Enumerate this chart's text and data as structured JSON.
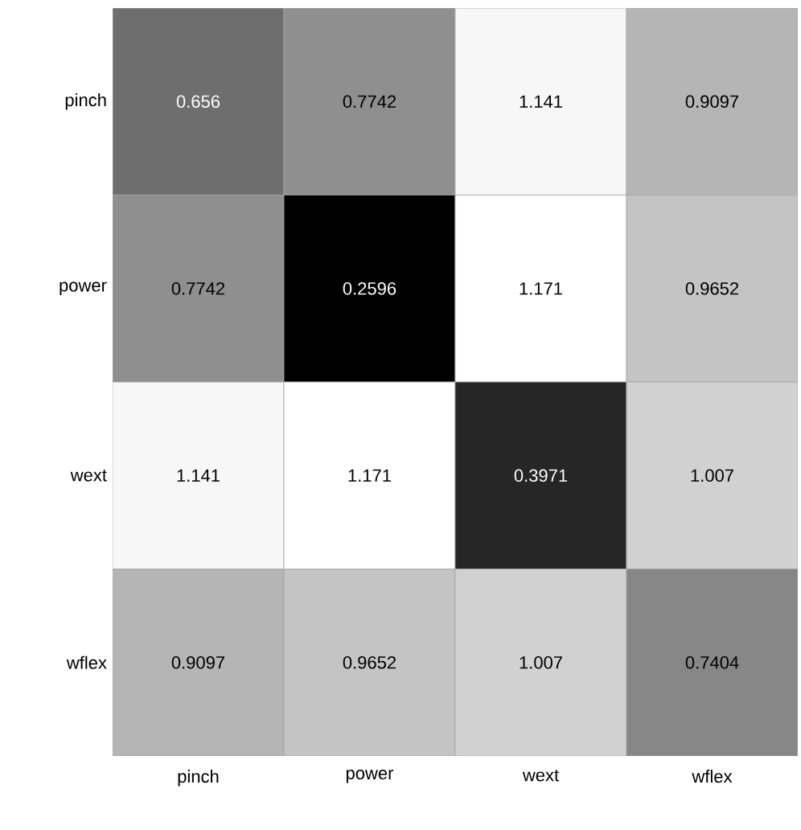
{
  "chart_data": {
    "type": "heatmap",
    "categories": [
      "pinch",
      "power",
      "wext",
      "wflex"
    ],
    "y_categories": [
      "pinch",
      "power",
      "wext",
      "wflex"
    ],
    "cells": [
      [
        0.656,
        0.7742,
        1.141,
        0.9097
      ],
      [
        0.7742,
        0.2596,
        1.171,
        0.9652
      ],
      [
        1.141,
        1.171,
        0.3971,
        1.007
      ],
      [
        0.9097,
        0.9652,
        1.007,
        0.7404
      ]
    ],
    "data_labels": true
  }
}
